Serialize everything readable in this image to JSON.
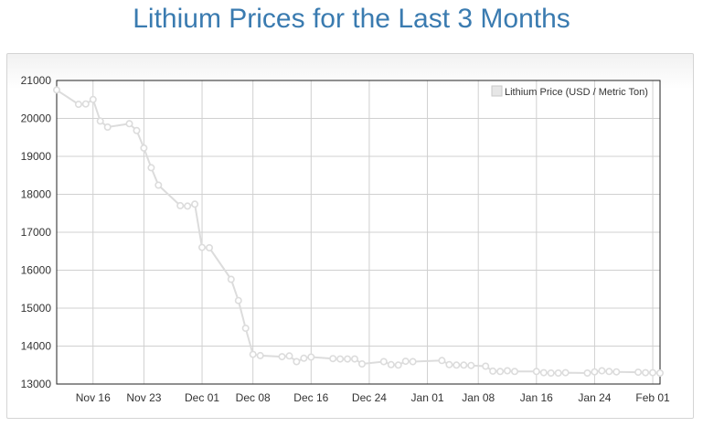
{
  "page": {
    "title": "Lithium Prices for the Last 3 Months"
  },
  "colors": {
    "title": "#3a7bb0",
    "series": "#dcdcdc",
    "grid": "#d0d0d0",
    "axis": "#222222"
  },
  "chart_data": {
    "type": "line",
    "title": "Lithium Prices for the Last 3 Months",
    "xlabel": "",
    "ylabel": "",
    "x_ticks": [
      "Nov 16",
      "Nov 23",
      "Dec 01",
      "Dec 08",
      "Dec 16",
      "Dec 24",
      "Jan 01",
      "Jan 08",
      "Jan 16",
      "Jan 24",
      "Feb 01"
    ],
    "y_ticks": [
      13000,
      14000,
      15000,
      16000,
      17000,
      18000,
      19000,
      20000,
      21000
    ],
    "ylim": [
      13000,
      21000
    ],
    "xlim": [
      "Nov 11",
      "Feb 02"
    ],
    "grid": true,
    "legend_position": "top-right",
    "series": [
      {
        "name": "Lithium Price (USD / Metric Ton)",
        "x": [
          "Nov 11",
          "Nov 14",
          "Nov 15",
          "Nov 16",
          "Nov 17",
          "Nov 18",
          "Nov 21",
          "Nov 22",
          "Nov 23",
          "Nov 24",
          "Nov 25",
          "Nov 28",
          "Nov 29",
          "Nov 30",
          "Dec 01",
          "Dec 02",
          "Dec 05",
          "Dec 06",
          "Dec 07",
          "Dec 08",
          "Dec 09",
          "Dec 12",
          "Dec 13",
          "Dec 14",
          "Dec 15",
          "Dec 16",
          "Dec 19",
          "Dec 20",
          "Dec 21",
          "Dec 22",
          "Dec 23",
          "Dec 26",
          "Dec 27",
          "Dec 28",
          "Dec 29",
          "Dec 30",
          "Jan 03",
          "Jan 04",
          "Jan 05",
          "Jan 06",
          "Jan 07",
          "Jan 09",
          "Jan 10",
          "Jan 11",
          "Jan 12",
          "Jan 13",
          "Jan 16",
          "Jan 17",
          "Jan 18",
          "Jan 19",
          "Jan 20",
          "Jan 23",
          "Jan 24",
          "Jan 25",
          "Jan 26",
          "Jan 27",
          "Jan 30",
          "Jan 31",
          "Feb 01",
          "Feb 02"
        ],
        "values": [
          20750,
          20370,
          20380,
          20500,
          19930,
          19770,
          19860,
          19680,
          19220,
          18700,
          18240,
          17700,
          17690,
          17740,
          16600,
          16590,
          15760,
          15200,
          14470,
          13780,
          13750,
          13720,
          13740,
          13590,
          13680,
          13710,
          13670,
          13660,
          13660,
          13660,
          13530,
          13590,
          13510,
          13500,
          13600,
          13590,
          13620,
          13510,
          13500,
          13500,
          13490,
          13470,
          13340,
          13330,
          13350,
          13330,
          13330,
          13300,
          13290,
          13290,
          13300,
          13290,
          13320,
          13350,
          13330,
          13320,
          13310,
          13300,
          13300,
          13290
        ]
      }
    ]
  }
}
